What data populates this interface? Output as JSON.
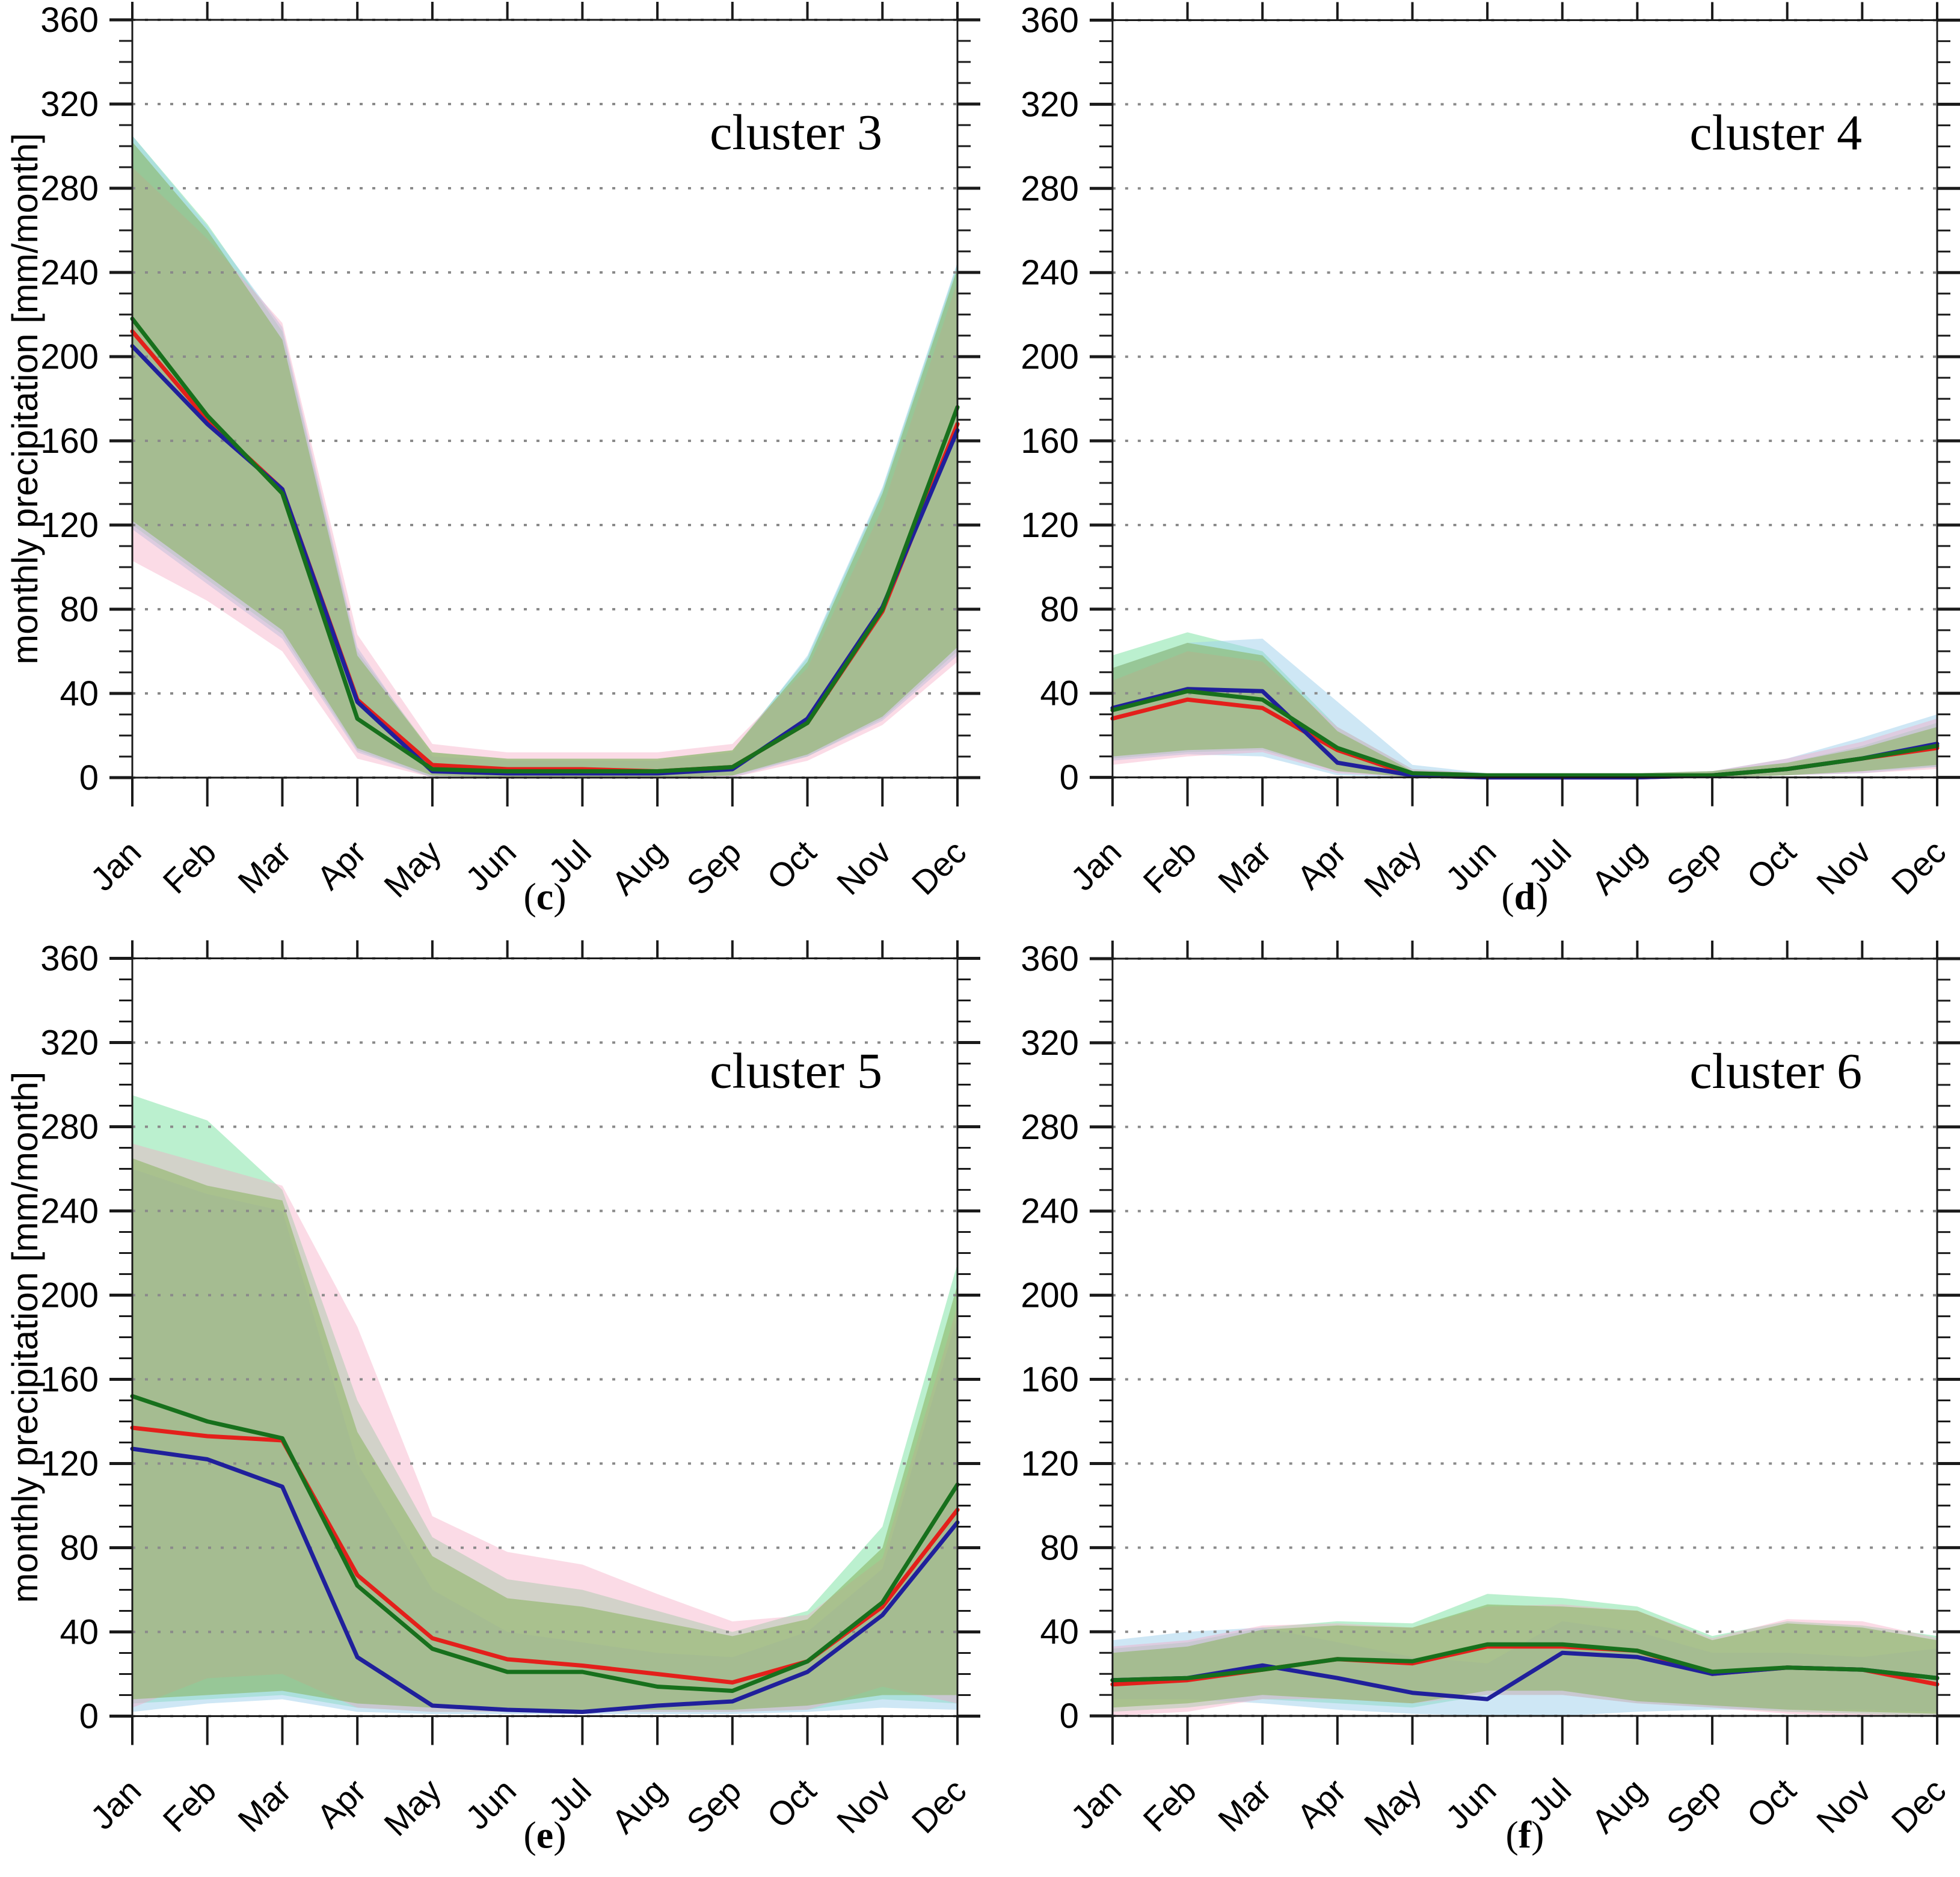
{
  "figure": {
    "months": [
      "Jan",
      "Feb",
      "Mar",
      "Apr",
      "May",
      "Jun",
      "Jul",
      "Aug",
      "Sep",
      "Oct",
      "Nov",
      "Dec"
    ],
    "y_axis": {
      "label": "monthly precipitation [mm/month]",
      "min": 0,
      "max": 360,
      "major_step": 40,
      "minor_step": 10,
      "tick_labels": [
        "0",
        "40",
        "80",
        "120",
        "160",
        "200",
        "240",
        "280",
        "320",
        "360"
      ]
    },
    "band_order": [
      "mint",
      "blue",
      "pink",
      "green"
    ],
    "colors": {
      "red_line": "#e3201b",
      "green_line": "#17701c",
      "blue_line": "#20209b",
      "band_mint": "#78e19f80",
      "band_blue": "#9ed0eb80",
      "band_pink": "#f4a4c166",
      "band_green": "#86b35c8c",
      "grid": "#8a8a8a",
      "axis": "#1a1a1a"
    }
  },
  "chart_data": [
    {
      "type": "line",
      "title": "cluster 3",
      "caption_open": "(",
      "caption_letter": "c",
      "caption_close": ")",
      "show_y_label": true,
      "x": [
        "Jan",
        "Feb",
        "Mar",
        "Apr",
        "May",
        "Jun",
        "Jul",
        "Aug",
        "Sep",
        "Oct",
        "Nov",
        "Dec"
      ],
      "ylim": [
        0,
        360
      ],
      "series": [
        {
          "name": "red",
          "values": [
            212,
            170,
            137,
            37,
            6,
            4,
            4,
            3,
            5,
            26,
            79,
            168
          ]
        },
        {
          "name": "blue",
          "values": [
            205,
            168,
            137,
            36,
            3,
            2,
            2,
            2,
            4,
            28,
            81,
            165
          ]
        },
        {
          "name": "green",
          "values": [
            218,
            172,
            135,
            28,
            4,
            3,
            3,
            3,
            5,
            26,
            80,
            176
          ]
        }
      ],
      "bands": [
        {
          "name": "mint",
          "upper": [
            305,
            263,
            212,
            60,
            12,
            9,
            9,
            9,
            13,
            57,
            137,
            244
          ],
          "lower": [
            120,
            94,
            68,
            13,
            0,
            0,
            0,
            0,
            1,
            10,
            28,
            60
          ]
        },
        {
          "name": "blue",
          "upper": [
            305,
            262,
            214,
            62,
            10,
            8,
            8,
            8,
            12,
            58,
            138,
            245
          ],
          "lower": [
            118,
            92,
            66,
            12,
            0,
            0,
            0,
            0,
            0,
            10,
            27,
            58
          ]
        },
        {
          "name": "pink",
          "upper": [
            290,
            256,
            216,
            68,
            16,
            12,
            12,
            12,
            16,
            52,
            128,
            236
          ],
          "lower": [
            103,
            84,
            60,
            9,
            0,
            0,
            0,
            0,
            0,
            8,
            25,
            55
          ]
        },
        {
          "name": "green",
          "upper": [
            302,
            260,
            208,
            58,
            12,
            9,
            9,
            9,
            13,
            55,
            135,
            242
          ],
          "lower": [
            122,
            96,
            70,
            14,
            1,
            0,
            0,
            0,
            1,
            11,
            29,
            62
          ]
        }
      ]
    },
    {
      "type": "line",
      "title": "cluster 4",
      "caption_open": "(",
      "caption_letter": "d",
      "caption_close": ")",
      "show_y_label": false,
      "x": [
        "Jan",
        "Feb",
        "Mar",
        "Apr",
        "May",
        "Jun",
        "Jul",
        "Aug",
        "Sep",
        "Oct",
        "Nov",
        "Dec"
      ],
      "ylim": [
        0,
        360
      ],
      "series": [
        {
          "name": "red",
          "values": [
            28,
            37,
            33,
            13,
            1,
            0,
            0,
            0,
            1,
            4,
            9,
            14
          ]
        },
        {
          "name": "blue",
          "values": [
            33,
            42,
            41,
            7,
            1,
            0,
            0,
            0,
            1,
            4,
            9,
            16
          ]
        },
        {
          "name": "green",
          "values": [
            32,
            41,
            37,
            14,
            2,
            1,
            1,
            1,
            1,
            4,
            9,
            15
          ]
        }
      ],
      "bands": [
        {
          "name": "mint",
          "upper": [
            58,
            69,
            60,
            24,
            4,
            2,
            2,
            2,
            3,
            7,
            15,
            26
          ],
          "lower": [
            9,
            12,
            13,
            3,
            0,
            0,
            0,
            0,
            0,
            1,
            3,
            5
          ]
        },
        {
          "name": "blue",
          "upper": [
            52,
            64,
            66,
            36,
            6,
            2,
            2,
            2,
            3,
            9,
            19,
            30
          ],
          "lower": [
            8,
            11,
            10,
            1,
            0,
            0,
            0,
            0,
            0,
            1,
            2,
            5
          ]
        },
        {
          "name": "pink",
          "upper": [
            46,
            60,
            55,
            24,
            4,
            2,
            2,
            2,
            3,
            9,
            17,
            28
          ],
          "lower": [
            6,
            10,
            12,
            2,
            0,
            0,
            0,
            0,
            0,
            1,
            2,
            4
          ]
        },
        {
          "name": "green",
          "upper": [
            52,
            64,
            58,
            22,
            3,
            2,
            2,
            2,
            3,
            7,
            14,
            24
          ],
          "lower": [
            10,
            13,
            14,
            3,
            0,
            0,
            0,
            0,
            0,
            1,
            3,
            6
          ]
        }
      ]
    },
    {
      "type": "line",
      "title": "cluster 5",
      "caption_open": "(",
      "caption_letter": "e",
      "caption_close": ")",
      "show_y_label": true,
      "x": [
        "Jan",
        "Feb",
        "Mar",
        "Apr",
        "May",
        "Jun",
        "Jul",
        "Aug",
        "Sep",
        "Oct",
        "Nov",
        "Dec"
      ],
      "ylim": [
        0,
        360
      ],
      "series": [
        {
          "name": "red",
          "values": [
            137,
            133,
            131,
            67,
            37,
            27,
            24,
            20,
            16,
            26,
            52,
            98
          ]
        },
        {
          "name": "blue",
          "values": [
            127,
            122,
            109,
            28,
            5,
            3,
            2,
            5,
            7,
            21,
            48,
            92
          ]
        },
        {
          "name": "green",
          "values": [
            152,
            140,
            132,
            62,
            32,
            21,
            21,
            14,
            12,
            26,
            54,
            110
          ]
        }
      ],
      "bands": [
        {
          "name": "mint",
          "upper": [
            295,
            283,
            250,
            150,
            85,
            65,
            60,
            50,
            40,
            50,
            90,
            215
          ],
          "lower": [
            6,
            8,
            10,
            4,
            2,
            2,
            2,
            2,
            2,
            3,
            8,
            6
          ]
        },
        {
          "name": "blue",
          "upper": [
            260,
            248,
            240,
            120,
            60,
            40,
            35,
            30,
            28,
            40,
            70,
            190
          ],
          "lower": [
            2,
            6,
            8,
            2,
            1,
            1,
            1,
            1,
            1,
            2,
            4,
            3
          ]
        },
        {
          "name": "pink",
          "upper": [
            272,
            262,
            252,
            185,
            95,
            78,
            72,
            58,
            45,
            48,
            75,
            195
          ],
          "lower": [
            4,
            18,
            20,
            4,
            2,
            2,
            2,
            2,
            2,
            3,
            14,
            6
          ]
        },
        {
          "name": "green",
          "upper": [
            265,
            252,
            245,
            135,
            76,
            56,
            52,
            45,
            38,
            46,
            80,
            205
          ],
          "lower": [
            8,
            10,
            12,
            6,
            4,
            3,
            3,
            3,
            3,
            5,
            10,
            10
          ]
        }
      ]
    },
    {
      "type": "line",
      "title": "cluster 6",
      "caption_open": "(",
      "caption_letter": "f",
      "caption_close": ")",
      "show_y_label": false,
      "x": [
        "Jan",
        "Feb",
        "Mar",
        "Apr",
        "May",
        "Jun",
        "Jul",
        "Aug",
        "Sep",
        "Oct",
        "Nov",
        "Dec"
      ],
      "ylim": [
        0,
        360
      ],
      "series": [
        {
          "name": "red",
          "values": [
            15,
            17,
            22,
            27,
            25,
            33,
            33,
            31,
            20,
            23,
            22,
            15
          ]
        },
        {
          "name": "blue",
          "values": [
            17,
            18,
            24,
            18,
            11,
            8,
            30,
            28,
            20,
            23,
            22,
            18
          ]
        },
        {
          "name": "green",
          "values": [
            17,
            18,
            22,
            27,
            26,
            34,
            34,
            31,
            21,
            23,
            22,
            18
          ]
        }
      ],
      "bands": [
        {
          "name": "mint",
          "upper": [
            32,
            35,
            42,
            45,
            44,
            58,
            56,
            52,
            38,
            45,
            43,
            38
          ],
          "lower": [
            2,
            4,
            8,
            6,
            4,
            10,
            10,
            6,
            4,
            2,
            1,
            0
          ]
        },
        {
          "name": "blue",
          "upper": [
            36,
            40,
            42,
            35,
            28,
            25,
            45,
            40,
            30,
            30,
            28,
            32
          ],
          "lower": [
            8,
            8,
            6,
            3,
            1,
            0,
            0,
            2,
            3,
            3,
            3,
            2
          ]
        },
        {
          "name": "pink",
          "upper": [
            33,
            36,
            43,
            44,
            42,
            52,
            53,
            50,
            37,
            46,
            45,
            37
          ],
          "lower": [
            0,
            2,
            8,
            8,
            6,
            10,
            10,
            6,
            4,
            1,
            0,
            0
          ]
        },
        {
          "name": "green",
          "upper": [
            30,
            33,
            41,
            43,
            42,
            53,
            52,
            50,
            36,
            44,
            42,
            36
          ],
          "lower": [
            4,
            6,
            10,
            8,
            6,
            12,
            12,
            7,
            5,
            3,
            2,
            1
          ]
        }
      ]
    }
  ]
}
